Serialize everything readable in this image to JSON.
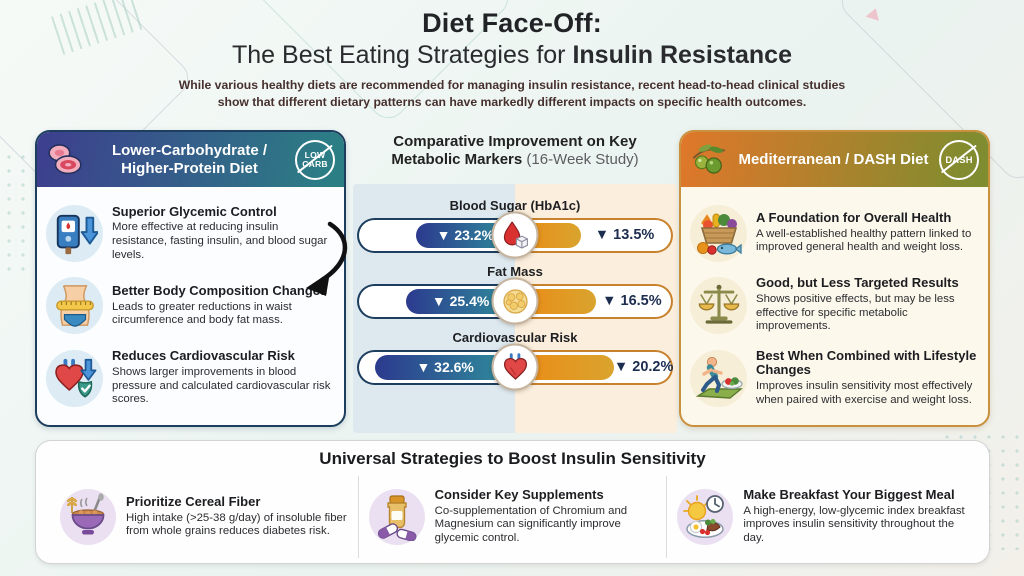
{
  "header": {
    "title_line1": "Diet Face-Off:",
    "title_line2_regular": "The Best Eating Strategies for ",
    "title_line2_bold": "Insulin Resistance",
    "subtitle": "While various healthy diets are recommended for managing insulin resistance, recent head-to-head clinical studies show that different dietary patterns can have markedly different impacts on specific health outcomes."
  },
  "left_panel": {
    "title": "Lower-Carbohydrate / Higher-Protein Diet",
    "badge_line1": "LOW",
    "badge_line2": "CARB",
    "header_icon": "meat-icon",
    "items": [
      {
        "icon": "glucose-meter-icon",
        "title": "Superior Glycemic Control",
        "body": "More effective at reducing insulin resistance, fasting insulin, and blood sugar levels."
      },
      {
        "icon": "waist-measuring-tape-icon",
        "title": "Better Body Composition Changes",
        "body": "Leads to greater reductions in waist circumference and body fat mass."
      },
      {
        "icon": "heart-shield-icon",
        "title": "Reduces Cardiovascular Risk",
        "body": "Shows larger improvements in blood pressure and calculated cardiovascular risk scores."
      }
    ]
  },
  "middle_panel": {
    "title_bold": "Comparative Improvement on Key Metabolic Markers",
    "title_light": " (16-Week Study)",
    "metrics": [
      {
        "label": "Blood Sugar (HbA1c)",
        "icon": "blood-drop-sugar-icon",
        "left_value": "▼ 23.2%",
        "right_value": "▼ 13.5%"
      },
      {
        "label": "Fat Mass",
        "icon": "fat-cells-icon",
        "left_value": "▼ 25.4%",
        "right_value": "▼ 16.5%"
      },
      {
        "label": "Cardiovascular Risk",
        "icon": "heart-icon",
        "left_value": "▼ 32.6%",
        "right_value": "▼ 20.2%"
      }
    ]
  },
  "right_panel": {
    "title": "Mediterranean / DASH Diet",
    "badge": "DASH",
    "header_icon": "olives-icon",
    "items": [
      {
        "icon": "vegetable-basket-icon",
        "title": "A Foundation for Overall Health",
        "body": "A well-established healthy pattern linked to improved general health and weight loss."
      },
      {
        "icon": "balance-scale-icon",
        "title": "Good, but Less Targeted Results",
        "body": "Shows positive effects, but may be less effective for specific metabolic improvements."
      },
      {
        "icon": "runner-icon",
        "title": "Best When Combined with Lifestyle Changes",
        "body": "Improves insulin sensitivity most effectively when paired with exercise and weight loss."
      }
    ]
  },
  "bottom_panel": {
    "title": "Universal Strategies to Boost Insulin Sensitivity",
    "items": [
      {
        "icon": "cereal-bowl-icon",
        "title": "Prioritize Cereal Fiber",
        "body": "High intake (>25-38 g/day) of insoluble fiber from whole grains reduces diabetes risk."
      },
      {
        "icon": "supplements-icon",
        "title": "Consider Key Supplements",
        "body": "Co-supplementation of Chromium and Magnesium can significantly improve glycemic control."
      },
      {
        "icon": "breakfast-icon",
        "title": "Make Breakfast Your Biggest Meal",
        "body": "A high-energy, low-glycemic index breakfast improves insulin sensitivity throughout the day."
      }
    ]
  },
  "chart_data": {
    "type": "bar",
    "title": "Comparative Improvement on Key Metabolic Markers (16-Week Study)",
    "categories": [
      "Blood Sugar (HbA1c)",
      "Fat Mass",
      "Cardiovascular Risk"
    ],
    "series": [
      {
        "name": "Lower-Carbohydrate / Higher-Protein Diet",
        "values": [
          23.2,
          25.4,
          32.6
        ]
      },
      {
        "name": "Mediterranean / DASH Diet",
        "values": [
          13.5,
          16.5,
          20.2
        ]
      }
    ],
    "unit": "% reduction (▼)",
    "layout": "opposed horizontal bars growing outward from center icon",
    "legend_position": "none"
  },
  "colors": {
    "left_header_gradient_from": "#3d3e8e",
    "left_header_gradient_to": "#2c7e85",
    "right_header_gradient_from": "#e0772a",
    "right_header_gradient_to": "#7f8c2f",
    "left_panel_border": "#1d3e5e",
    "right_panel_border": "#c9913d",
    "low_carb_bar_gradient": [
      "#2c3a8e",
      "#2f8f9c"
    ],
    "dash_bar_gradient": [
      "#ec8a15",
      "#d9a42e"
    ],
    "split_background_left": "#dde9ef",
    "split_background_right": "#fbeedc"
  }
}
